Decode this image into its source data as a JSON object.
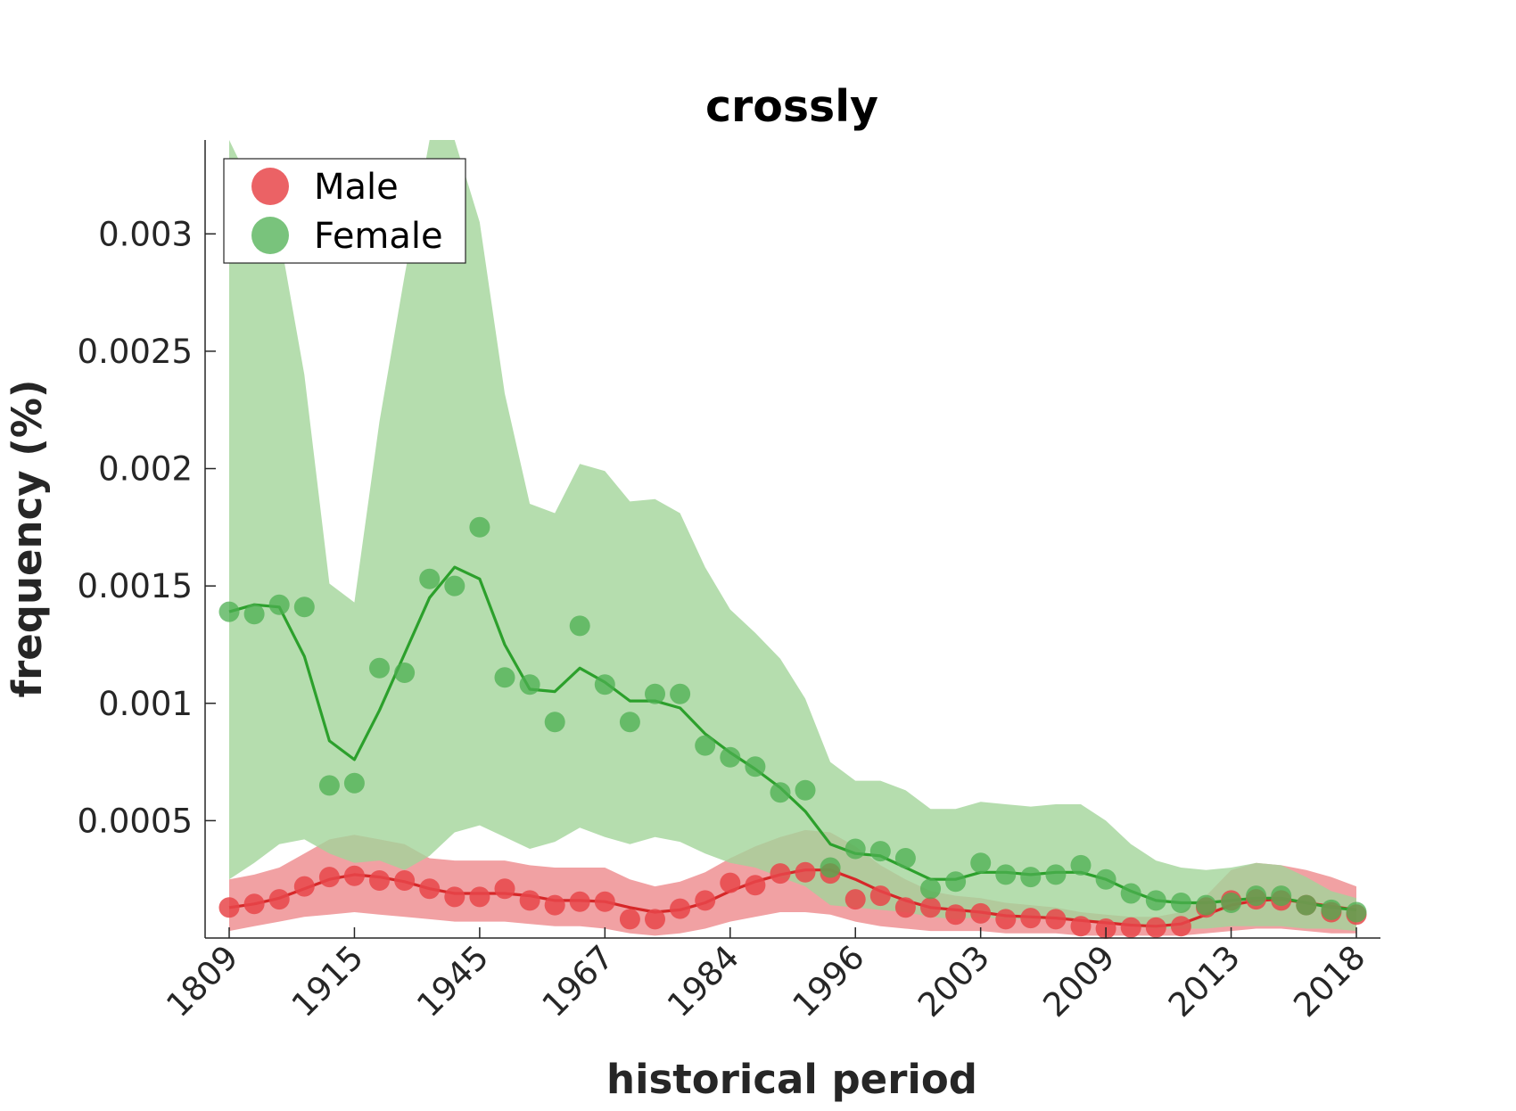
{
  "chart_data": {
    "type": "line",
    "title": "crossly",
    "xlabel": "historical period",
    "ylabel": "frequency (%)",
    "xlim": [
      0,
      45
    ],
    "ylim": [
      0,
      0.0034
    ],
    "y_ticks": [
      0.0005,
      0.001,
      0.0015,
      0.002,
      0.0025,
      0.003
    ],
    "y_tick_labels": [
      "0.0005",
      "0.001",
      "0.0015",
      "0.002",
      "0.0025",
      "0.003"
    ],
    "x_tick_positions": [
      0,
      5,
      10,
      15,
      20,
      25,
      30,
      35,
      40,
      45
    ],
    "x_tick_labels": [
      "1809",
      "1915",
      "1945",
      "1967",
      "1984",
      "1996",
      "2003",
      "2009",
      "2013",
      "2018"
    ],
    "grid": false,
    "legend_position": "top-left",
    "series": [
      {
        "name": "Male",
        "color": "#d62728",
        "marker_color": "#e8474a",
        "band_color": "#ee8a8c",
        "points": [
          0.00013,
          0.000145,
          0.000165,
          0.00022,
          0.00026,
          0.000265,
          0.000245,
          0.000245,
          0.00021,
          0.000175,
          0.000175,
          0.00021,
          0.00016,
          0.00014,
          0.000155,
          0.000155,
          8e-05,
          8e-05,
          0.000125,
          0.00016,
          0.000235,
          0.000225,
          0.000275,
          0.00028,
          0.000275,
          0.000165,
          0.00018,
          0.00013,
          0.00013,
          0.0001,
          0.000105,
          8e-05,
          8.5e-05,
          8e-05,
          5e-05,
          4e-05,
          4.5e-05,
          4.5e-05,
          5e-05,
          0.00013,
          0.00016,
          0.000165,
          0.00016,
          0.00014,
          0.00011,
          0.0001
        ],
        "line": [
          0.00013,
          0.000145,
          0.00017,
          0.00021,
          0.00025,
          0.00027,
          0.00026,
          0.00024,
          0.00021,
          0.00019,
          0.00019,
          0.00019,
          0.00018,
          0.00016,
          0.00016,
          0.000155,
          0.00013,
          0.00011,
          0.00012,
          0.00015,
          0.0002,
          0.00024,
          0.00027,
          0.00029,
          0.00029,
          0.00025,
          0.0002,
          0.00016,
          0.00013,
          0.00012,
          0.00011,
          9.5e-05,
          9e-05,
          8.5e-05,
          7.5e-05,
          6.5e-05,
          5.5e-05,
          5e-05,
          6e-05,
          0.0001,
          0.00014,
          0.00016,
          0.000165,
          0.00015,
          0.000135,
          0.00012
        ],
        "band_upper": [
          0.00025,
          0.00027,
          0.0003,
          0.00036,
          0.00042,
          0.00044,
          0.00042,
          0.0004,
          0.00034,
          0.00033,
          0.00033,
          0.00033,
          0.00031,
          0.0003,
          0.0003,
          0.0003,
          0.00025,
          0.00022,
          0.00024,
          0.00028,
          0.00034,
          0.00039,
          0.00043,
          0.00046,
          0.00045,
          0.00039,
          0.00031,
          0.00025,
          0.0002,
          0.00018,
          0.00017,
          0.00015,
          0.00014,
          0.00013,
          0.00011,
          0.0001,
          9e-05,
          9e-05,
          0.00011,
          0.00018,
          0.00029,
          0.00032,
          0.00031,
          0.00029,
          0.00026,
          0.00022
        ],
        "band_lower": [
          3e-05,
          5e-05,
          7e-05,
          9e-05,
          0.0001,
          0.00011,
          0.0001,
          9e-05,
          8e-05,
          7e-05,
          7e-05,
          7e-05,
          6e-05,
          5e-05,
          5e-05,
          4e-05,
          2e-05,
          1e-05,
          2e-05,
          4e-05,
          7e-05,
          9e-05,
          0.00011,
          0.00011,
          0.0001,
          7e-05,
          5e-05,
          4e-05,
          3e-05,
          3e-05,
          3e-05,
          2e-05,
          2e-05,
          2e-05,
          1e-05,
          1e-05,
          1e-05,
          1e-05,
          1e-05,
          2e-05,
          3e-05,
          4e-05,
          4e-05,
          3e-05,
          2e-05,
          2e-05
        ]
      },
      {
        "name": "Female",
        "color": "#2ca02c",
        "marker_color": "#4caf50",
        "band_color": "#a3d49a",
        "points": [
          0.00139,
          0.00138,
          0.00142,
          0.00141,
          0.00065,
          0.00066,
          0.00115,
          0.00113,
          0.00153,
          0.0015,
          0.00175,
          0.00111,
          0.00108,
          0.00092,
          0.00133,
          0.00108,
          0.00092,
          0.00104,
          0.00104,
          0.00082,
          0.00077,
          0.00073,
          0.00062,
          0.00063,
          0.0003,
          0.00038,
          0.00037,
          0.00034,
          0.00021,
          0.00024,
          0.00032,
          0.00027,
          0.00026,
          0.00027,
          0.00031,
          0.00025,
          0.00019,
          0.00016,
          0.00015,
          0.00014,
          0.00015,
          0.00018,
          0.00018,
          0.00014,
          0.00012,
          0.00011
        ],
        "line": [
          0.00139,
          0.00142,
          0.00141,
          0.0012,
          0.00084,
          0.00076,
          0.00097,
          0.00121,
          0.00145,
          0.00158,
          0.00153,
          0.00125,
          0.00106,
          0.00105,
          0.00115,
          0.00109,
          0.00101,
          0.00101,
          0.00098,
          0.00087,
          0.00079,
          0.00072,
          0.00064,
          0.00054,
          0.0004,
          0.00036,
          0.00035,
          0.0003,
          0.00025,
          0.00025,
          0.00028,
          0.00028,
          0.00027,
          0.00028,
          0.00028,
          0.00025,
          0.0002,
          0.00016,
          0.00015,
          0.00015,
          0.00016,
          0.00017,
          0.00017,
          0.00015,
          0.00013,
          0.00012
        ],
        "band_upper": [
          0.0034,
          0.00318,
          0.003,
          0.0024,
          0.00151,
          0.00143,
          0.0022,
          0.00282,
          0.0034,
          0.0034,
          0.00305,
          0.00232,
          0.00185,
          0.00181,
          0.00202,
          0.00199,
          0.00186,
          0.00187,
          0.00181,
          0.00158,
          0.0014,
          0.0013,
          0.00119,
          0.00102,
          0.00075,
          0.00067,
          0.00067,
          0.00063,
          0.00055,
          0.00055,
          0.00058,
          0.00057,
          0.00056,
          0.00057,
          0.00057,
          0.0005,
          0.0004,
          0.00033,
          0.0003,
          0.00029,
          0.0003,
          0.00032,
          0.00031,
          0.00026,
          0.0002,
          0.00017
        ],
        "band_lower": [
          0.00025,
          0.00032,
          0.0004,
          0.00042,
          0.00036,
          0.00032,
          0.00033,
          0.00029,
          0.00035,
          0.00045,
          0.00048,
          0.00043,
          0.00038,
          0.00041,
          0.00047,
          0.00043,
          0.0004,
          0.00043,
          0.00041,
          0.00036,
          0.00032,
          0.0003,
          0.00026,
          0.00022,
          0.00014,
          0.00013,
          0.00012,
          0.00011,
          9e-05,
          8e-05,
          9e-05,
          8e-05,
          8e-05,
          8e-05,
          7e-05,
          6e-05,
          5e-05,
          4e-05,
          4e-05,
          4e-05,
          5e-05,
          5e-05,
          5e-05,
          4e-05,
          4e-05,
          3e-05
        ]
      }
    ]
  }
}
